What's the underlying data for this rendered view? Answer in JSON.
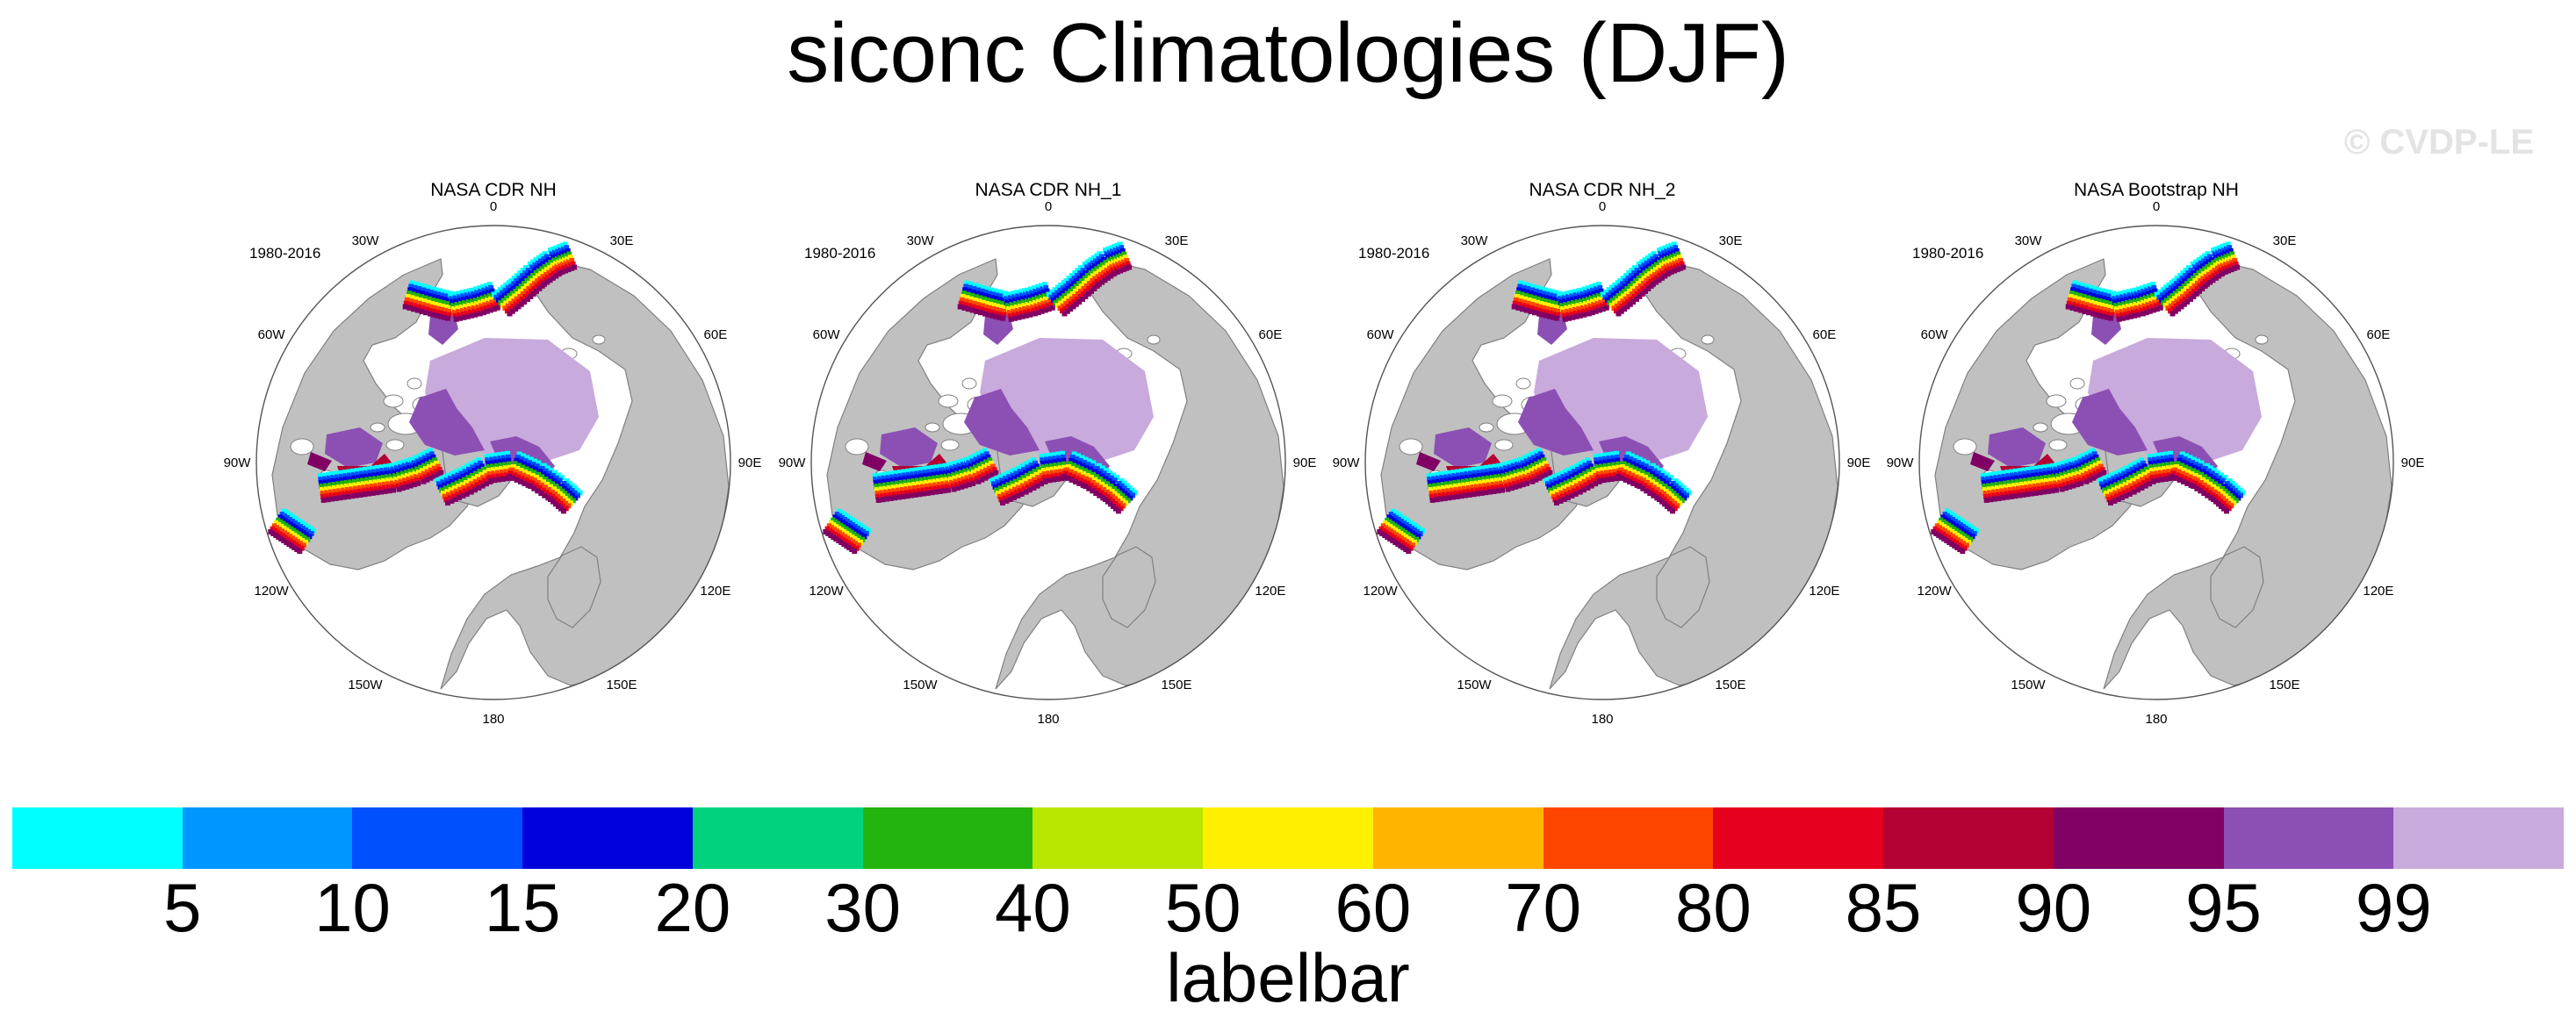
{
  "chart_data": {
    "type": "heatmap",
    "title": "siconc Climatologies (DJF)",
    "watermark": "© CVDP-LE",
    "panels": [
      {
        "title": "NASA CDR NH",
        "period": "1980-2016"
      },
      {
        "title": "NASA CDR NH_1",
        "period": "1980-2016"
      },
      {
        "title": "NASA CDR NH_2",
        "period": "1980-2016"
      },
      {
        "title": "NASA Bootstrap NH",
        "period": "1980-2016"
      }
    ],
    "longitude_labels": [
      "180",
      "150E",
      "120E",
      "90E",
      "60E",
      "30E",
      "0",
      "30W",
      "60W",
      "90W",
      "120W",
      "150W"
    ],
    "colorbar": {
      "label": "labelbar",
      "levels": [
        "5",
        "10",
        "15",
        "20",
        "30",
        "40",
        "50",
        "60",
        "70",
        "80",
        "85",
        "90",
        "95",
        "99"
      ],
      "colors": [
        "#00ffff",
        "#0096ff",
        "#0050ff",
        "#0000dc",
        "#00d27d",
        "#23b40f",
        "#b9e600",
        "#fff000",
        "#ffb400",
        "#ff4600",
        "#e6001e",
        "#b40032",
        "#800064",
        "#8c50b4",
        "#c8aadc"
      ]
    },
    "colors": {
      "land": "#c0c0c0",
      "ocean": "#ffffff",
      "outline": "#555555"
    }
  }
}
